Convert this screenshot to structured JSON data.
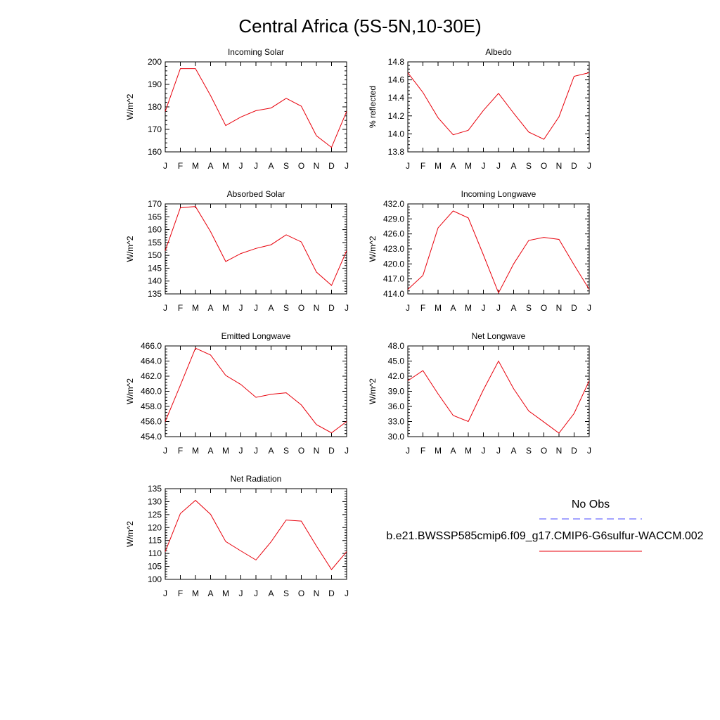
{
  "title": "Central Africa (5S-5N,10-30E)",
  "colors": {
    "model": "#e8000b",
    "obs": "#4a4aff",
    "axis": "#000000"
  },
  "legend": {
    "obs_label": "No Obs",
    "model_label": "b.e21.BWSSP585cmip6.f09_g17.CMIP6-G6sulfur-WACCM.002"
  },
  "chart_data": [
    {
      "type": "line",
      "title": "Incoming Solar",
      "ylabel": "W/m^2",
      "x": [
        "J",
        "F",
        "M",
        "A",
        "M",
        "J",
        "J",
        "A",
        "S",
        "O",
        "N",
        "D",
        "J"
      ],
      "ylim": [
        160,
        200
      ],
      "yticks": [
        160,
        170,
        180,
        190,
        200
      ],
      "ytick_labels": [
        "160",
        "170",
        "180",
        "190",
        "200"
      ],
      "series": [
        {
          "values": [
            178,
            197,
            197,
            185,
            171.7,
            175.5,
            178.3,
            179.5,
            183.8,
            180.3,
            167.2,
            162,
            178
          ]
        }
      ]
    },
    {
      "type": "line",
      "title": "Albedo",
      "ylabel": "% reflected",
      "x": [
        "J",
        "F",
        "M",
        "A",
        "M",
        "J",
        "J",
        "A",
        "S",
        "O",
        "N",
        "D",
        "J"
      ],
      "ylim": [
        13.8,
        14.8
      ],
      "yticks": [
        13.8,
        14.0,
        14.2,
        14.4,
        14.6,
        14.8
      ],
      "ytick_labels": [
        "13.8",
        "14.0",
        "14.2",
        "14.4",
        "14.6",
        "14.8"
      ],
      "series": [
        {
          "values": [
            14.68,
            14.46,
            14.18,
            13.99,
            14.04,
            14.26,
            14.45,
            14.23,
            14.02,
            13.94,
            14.19,
            14.64,
            14.68
          ]
        }
      ]
    },
    {
      "type": "line",
      "title": "Absorbed Solar",
      "ylabel": "W/m^2",
      "x": [
        "J",
        "F",
        "M",
        "A",
        "M",
        "J",
        "J",
        "A",
        "S",
        "O",
        "N",
        "D",
        "J"
      ],
      "ylim": [
        135,
        170
      ],
      "yticks": [
        135,
        140,
        145,
        150,
        155,
        160,
        165,
        170
      ],
      "ytick_labels": [
        "135",
        "140",
        "145",
        "150",
        "155",
        "160",
        "165",
        "170"
      ],
      "series": [
        {
          "values": [
            151.8,
            168.5,
            169.0,
            159.2,
            147.6,
            150.7,
            152.7,
            154.1,
            158.0,
            155.2,
            143.5,
            138.3,
            151.8
          ]
        }
      ]
    },
    {
      "type": "line",
      "title": "Incoming Longwave",
      "ylabel": "W/m^2",
      "x": [
        "J",
        "F",
        "M",
        "A",
        "M",
        "J",
        "J",
        "A",
        "S",
        "O",
        "N",
        "D",
        "J"
      ],
      "ylim": [
        414.0,
        432.0
      ],
      "yticks": [
        414,
        417,
        420,
        423,
        426,
        429,
        432
      ],
      "ytick_labels": [
        "414.0",
        "417.0",
        "420.0",
        "423.0",
        "426.0",
        "429.0",
        "432.0"
      ],
      "series": [
        {
          "values": [
            414.9,
            417.7,
            427.2,
            430.6,
            429.2,
            421.8,
            414.2,
            420.0,
            424.7,
            425.3,
            424.9,
            419.8,
            414.9
          ]
        }
      ]
    },
    {
      "type": "line",
      "title": "Emitted Longwave",
      "ylabel": "W/m^2",
      "x": [
        "J",
        "F",
        "M",
        "A",
        "M",
        "J",
        "J",
        "A",
        "S",
        "O",
        "N",
        "D",
        "J"
      ],
      "ylim": [
        454.0,
        466.0
      ],
      "yticks": [
        454,
        456,
        458,
        460,
        462,
        464,
        466
      ],
      "ytick_labels": [
        "454.0",
        "456.0",
        "458.0",
        "460.0",
        "462.0",
        "464.0",
        "466.0"
      ],
      "series": [
        {
          "values": [
            456.0,
            460.8,
            465.7,
            464.8,
            462.1,
            460.9,
            459.2,
            459.6,
            459.8,
            458.2,
            455.6,
            454.5,
            456.0
          ]
        }
      ]
    },
    {
      "type": "line",
      "title": "Net Longwave",
      "ylabel": "W/m^2",
      "x": [
        "J",
        "F",
        "M",
        "A",
        "M",
        "J",
        "J",
        "A",
        "S",
        "O",
        "N",
        "D",
        "J"
      ],
      "ylim": [
        30.0,
        48.0
      ],
      "yticks": [
        30,
        33,
        36,
        39,
        42,
        45,
        48
      ],
      "ytick_labels": [
        "30.0",
        "33.0",
        "36.0",
        "39.0",
        "42.0",
        "45.0",
        "48.0"
      ],
      "series": [
        {
          "values": [
            41.1,
            43.1,
            38.5,
            34.2,
            33.0,
            39.3,
            45.0,
            39.5,
            35.1,
            32.9,
            30.7,
            34.6,
            41.1
          ]
        }
      ]
    },
    {
      "type": "line",
      "title": "Net Radiation",
      "ylabel": "W/m^2",
      "x": [
        "J",
        "F",
        "M",
        "A",
        "M",
        "J",
        "J",
        "A",
        "S",
        "O",
        "N",
        "D",
        "J"
      ],
      "ylim": [
        100,
        135
      ],
      "yticks": [
        100,
        105,
        110,
        115,
        120,
        125,
        130,
        135
      ],
      "ytick_labels": [
        "100",
        "105",
        "110",
        "115",
        "120",
        "125",
        "130",
        "135"
      ],
      "series": [
        {
          "values": [
            110.7,
            125.4,
            130.5,
            125.1,
            114.6,
            111.0,
            107.5,
            114.5,
            122.9,
            122.5,
            112.9,
            103.8,
            110.7
          ]
        }
      ]
    }
  ]
}
